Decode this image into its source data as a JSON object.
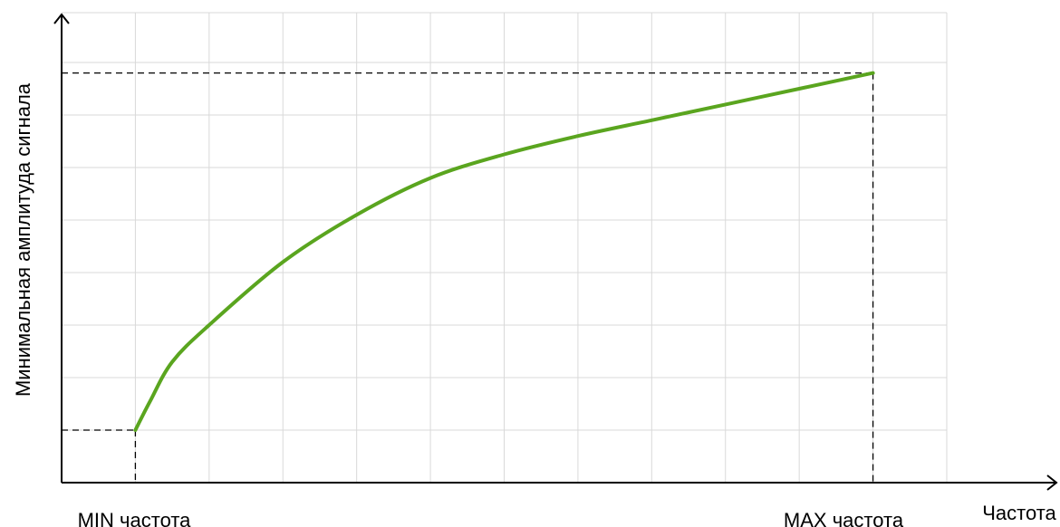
{
  "chart_data": {
    "type": "line",
    "title": "",
    "xlabel": "Частота",
    "ylabel": "Минимальная амплитуда сигнала",
    "x_ticks": [
      {
        "label": "MIN частота",
        "x": 1
      },
      {
        "label": "MAX частота",
        "x": 11
      }
    ],
    "xlim": [
      0,
      12
    ],
    "ylim": [
      0,
      8
    ],
    "grid": true,
    "legend": "none",
    "line_color": "#5aa51f",
    "series": [
      {
        "x": [
          1,
          1.2,
          1.5,
          2,
          3,
          4,
          5,
          6,
          7,
          8,
          9,
          10,
          11
        ],
        "y": [
          1,
          1.55,
          2.3,
          3,
          4.2,
          5.1,
          5.8,
          6.25,
          6.6,
          6.9,
          7.2,
          7.5,
          7.8
        ]
      }
    ],
    "guides": [
      {
        "x": 1,
        "y": 1
      },
      {
        "x": 11,
        "y": 7.8
      }
    ]
  }
}
